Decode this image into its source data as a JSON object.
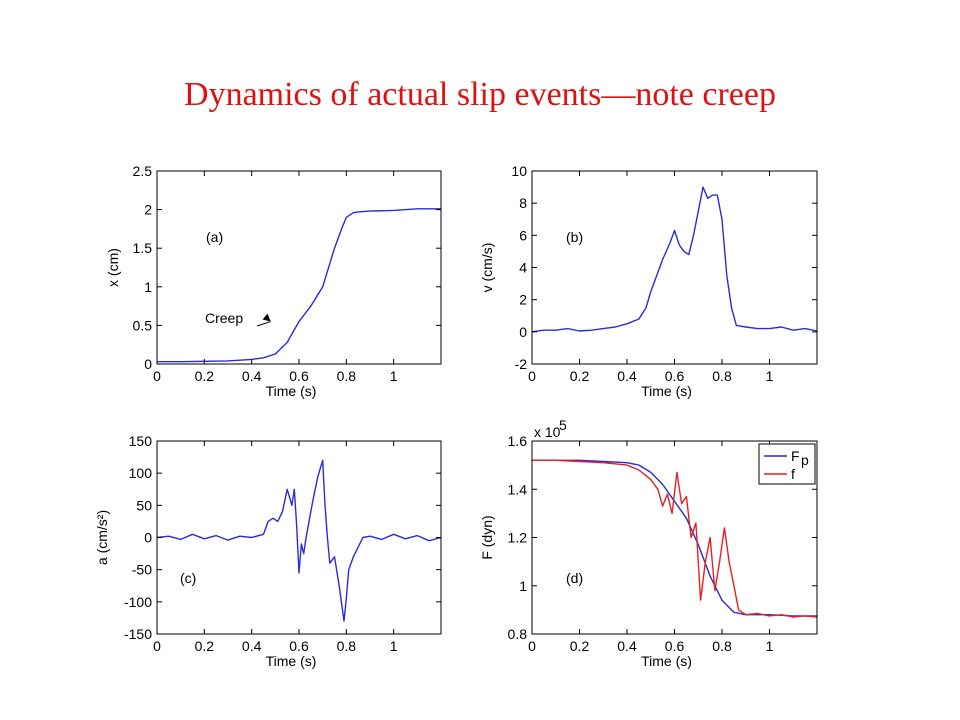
{
  "slide": {
    "title": "Dynamics of actual slip events—note creep"
  },
  "colors": {
    "title": "#e01010",
    "series_blue": "#2b2bd6",
    "series_red": "#e52020"
  },
  "chart_data": [
    {
      "type": "line",
      "panel_label": "(a)",
      "xlabel": "Time (s)",
      "ylabel": "x (cm)",
      "xlim": [
        0,
        1.2
      ],
      "ylim": [
        0,
        2.5
      ],
      "xticks": [
        0,
        0.2,
        0.4,
        0.6,
        0.8,
        1
      ],
      "xtick_labels": [
        "0",
        "0.2",
        "0.4",
        "0.6",
        "0.8",
        "1"
      ],
      "yticks": [
        0,
        0.5,
        1,
        1.5,
        2,
        2.5
      ],
      "ytick_labels": [
        "0",
        "0.5",
        "1",
        "1.5",
        "2",
        "2.5"
      ],
      "annotations": [
        {
          "text": "Creep",
          "x": 0.48,
          "y": 0.55
        }
      ],
      "series": [
        {
          "color": "#2b2bd6",
          "x": [
            0,
            0.1,
            0.2,
            0.3,
            0.4,
            0.45,
            0.5,
            0.55,
            0.6,
            0.65,
            0.7,
            0.72,
            0.75,
            0.78,
            0.8,
            0.83,
            0.85,
            0.9,
            1.0,
            1.1,
            1.2
          ],
          "y": [
            0.03,
            0.03,
            0.035,
            0.04,
            0.06,
            0.08,
            0.13,
            0.28,
            0.55,
            0.75,
            1.0,
            1.2,
            1.5,
            1.75,
            1.9,
            1.96,
            1.97,
            1.98,
            1.99,
            2.01,
            2.01
          ]
        }
      ]
    },
    {
      "type": "line",
      "panel_label": "(b)",
      "xlabel": "Time (s)",
      "ylabel": "v (cm/s)",
      "xlim": [
        0,
        1.2
      ],
      "ylim": [
        -2,
        10
      ],
      "xticks": [
        0,
        0.2,
        0.4,
        0.6,
        0.8,
        1
      ],
      "xtick_labels": [
        "0",
        "0.2",
        "0.4",
        "0.6",
        "0.8",
        "1"
      ],
      "yticks": [
        -2,
        0,
        2,
        4,
        6,
        8,
        10
      ],
      "ytick_labels": [
        "-2",
        "0",
        "2",
        "4",
        "6",
        "8",
        "10"
      ],
      "series": [
        {
          "color": "#2b2bd6",
          "x": [
            0,
            0.05,
            0.1,
            0.15,
            0.2,
            0.25,
            0.3,
            0.35,
            0.4,
            0.45,
            0.48,
            0.5,
            0.55,
            0.58,
            0.6,
            0.62,
            0.64,
            0.66,
            0.68,
            0.7,
            0.72,
            0.74,
            0.76,
            0.78,
            0.8,
            0.82,
            0.84,
            0.86,
            0.9,
            0.95,
            1.0,
            1.05,
            1.1,
            1.15,
            1.2
          ],
          "y": [
            0,
            0.1,
            0.1,
            0.2,
            0.05,
            0.1,
            0.2,
            0.3,
            0.5,
            0.8,
            1.5,
            2.5,
            4.5,
            5.5,
            6.3,
            5.4,
            5.0,
            4.8,
            6.0,
            7.5,
            9.0,
            8.3,
            8.5,
            8.5,
            7.0,
            3.5,
            1.5,
            0.4,
            0.3,
            0.2,
            0.2,
            0.3,
            0.1,
            0.2,
            0.05
          ]
        }
      ]
    },
    {
      "type": "line",
      "panel_label": "(c)",
      "xlabel": "Time (s)",
      "ylabel": "a (cm/s²)",
      "xlim": [
        0,
        1.2
      ],
      "ylim": [
        -150,
        150
      ],
      "xticks": [
        0,
        0.2,
        0.4,
        0.6,
        0.8,
        1
      ],
      "xtick_labels": [
        "0",
        "0.2",
        "0.4",
        "0.6",
        "0.8",
        "1"
      ],
      "yticks": [
        -150,
        -100,
        -50,
        0,
        50,
        100,
        150
      ],
      "ytick_labels": [
        "-150",
        "-100",
        "-50",
        "0",
        "50",
        "100",
        "150"
      ],
      "series": [
        {
          "color": "#2b2bd6",
          "x": [
            0,
            0.05,
            0.1,
            0.15,
            0.2,
            0.25,
            0.3,
            0.35,
            0.4,
            0.45,
            0.47,
            0.49,
            0.51,
            0.53,
            0.55,
            0.57,
            0.58,
            0.59,
            0.6,
            0.61,
            0.62,
            0.63,
            0.65,
            0.66,
            0.68,
            0.7,
            0.71,
            0.72,
            0.73,
            0.75,
            0.77,
            0.79,
            0.8,
            0.81,
            0.83,
            0.85,
            0.87,
            0.9,
            0.95,
            1.0,
            1.05,
            1.1,
            1.15,
            1.2
          ],
          "y": [
            0,
            2,
            -3,
            5,
            -2,
            3,
            -4,
            2,
            0,
            5,
            25,
            30,
            25,
            40,
            75,
            50,
            75,
            20,
            -55,
            -10,
            -25,
            0,
            40,
            60,
            95,
            120,
            50,
            0,
            -40,
            -30,
            -75,
            -130,
            -95,
            -50,
            -30,
            -15,
            0,
            2,
            -3,
            5,
            -2,
            3,
            -5,
            0
          ]
        }
      ]
    },
    {
      "type": "line",
      "panel_label": "(d)",
      "xlabel": "Time (s)",
      "ylabel": "F (dyn)",
      "scale_label": "x 10",
      "scale_exponent": "5",
      "xlim": [
        0,
        1.2
      ],
      "ylim": [
        0.8,
        1.6
      ],
      "xticks": [
        0,
        0.2,
        0.4,
        0.6,
        0.8,
        1
      ],
      "xtick_labels": [
        "0",
        "0.2",
        "0.4",
        "0.6",
        "0.8",
        "1"
      ],
      "yticks": [
        0.8,
        1.0,
        1.2,
        1.4,
        1.6
      ],
      "ytick_labels": [
        "0.8",
        "1",
        "1.2",
        "1.4",
        "1.6"
      ],
      "legend": {
        "placement": "top-right",
        "entries": [
          {
            "label": "F",
            "subscript": "p"
          },
          {
            "label": "f",
            "subscript": ""
          }
        ]
      },
      "series": [
        {
          "name": "F_p",
          "color": "#2b2bd6",
          "x": [
            0,
            0.1,
            0.2,
            0.3,
            0.4,
            0.45,
            0.5,
            0.55,
            0.6,
            0.65,
            0.7,
            0.75,
            0.8,
            0.85,
            0.9,
            1.0,
            1.1,
            1.2
          ],
          "y": [
            1.52,
            1.52,
            1.52,
            1.515,
            1.51,
            1.5,
            1.47,
            1.42,
            1.35,
            1.28,
            1.17,
            1.04,
            0.94,
            0.89,
            0.88,
            0.88,
            0.875,
            0.875
          ]
        },
        {
          "name": "f",
          "color": "#e52020",
          "x": [
            0,
            0.1,
            0.2,
            0.3,
            0.4,
            0.45,
            0.5,
            0.53,
            0.55,
            0.57,
            0.59,
            0.61,
            0.63,
            0.65,
            0.67,
            0.69,
            0.71,
            0.73,
            0.75,
            0.77,
            0.79,
            0.81,
            0.83,
            0.85,
            0.87,
            0.9,
            0.95,
            1.0,
            1.05,
            1.1,
            1.15,
            1.2
          ],
          "y": [
            1.52,
            1.52,
            1.515,
            1.51,
            1.5,
            1.48,
            1.44,
            1.4,
            1.33,
            1.38,
            1.3,
            1.47,
            1.34,
            1.37,
            1.2,
            1.26,
            0.94,
            1.1,
            1.2,
            0.98,
            1.1,
            1.24,
            1.1,
            1.0,
            0.9,
            0.88,
            0.885,
            0.875,
            0.88,
            0.87,
            0.875,
            0.87
          ]
        }
      ]
    }
  ]
}
